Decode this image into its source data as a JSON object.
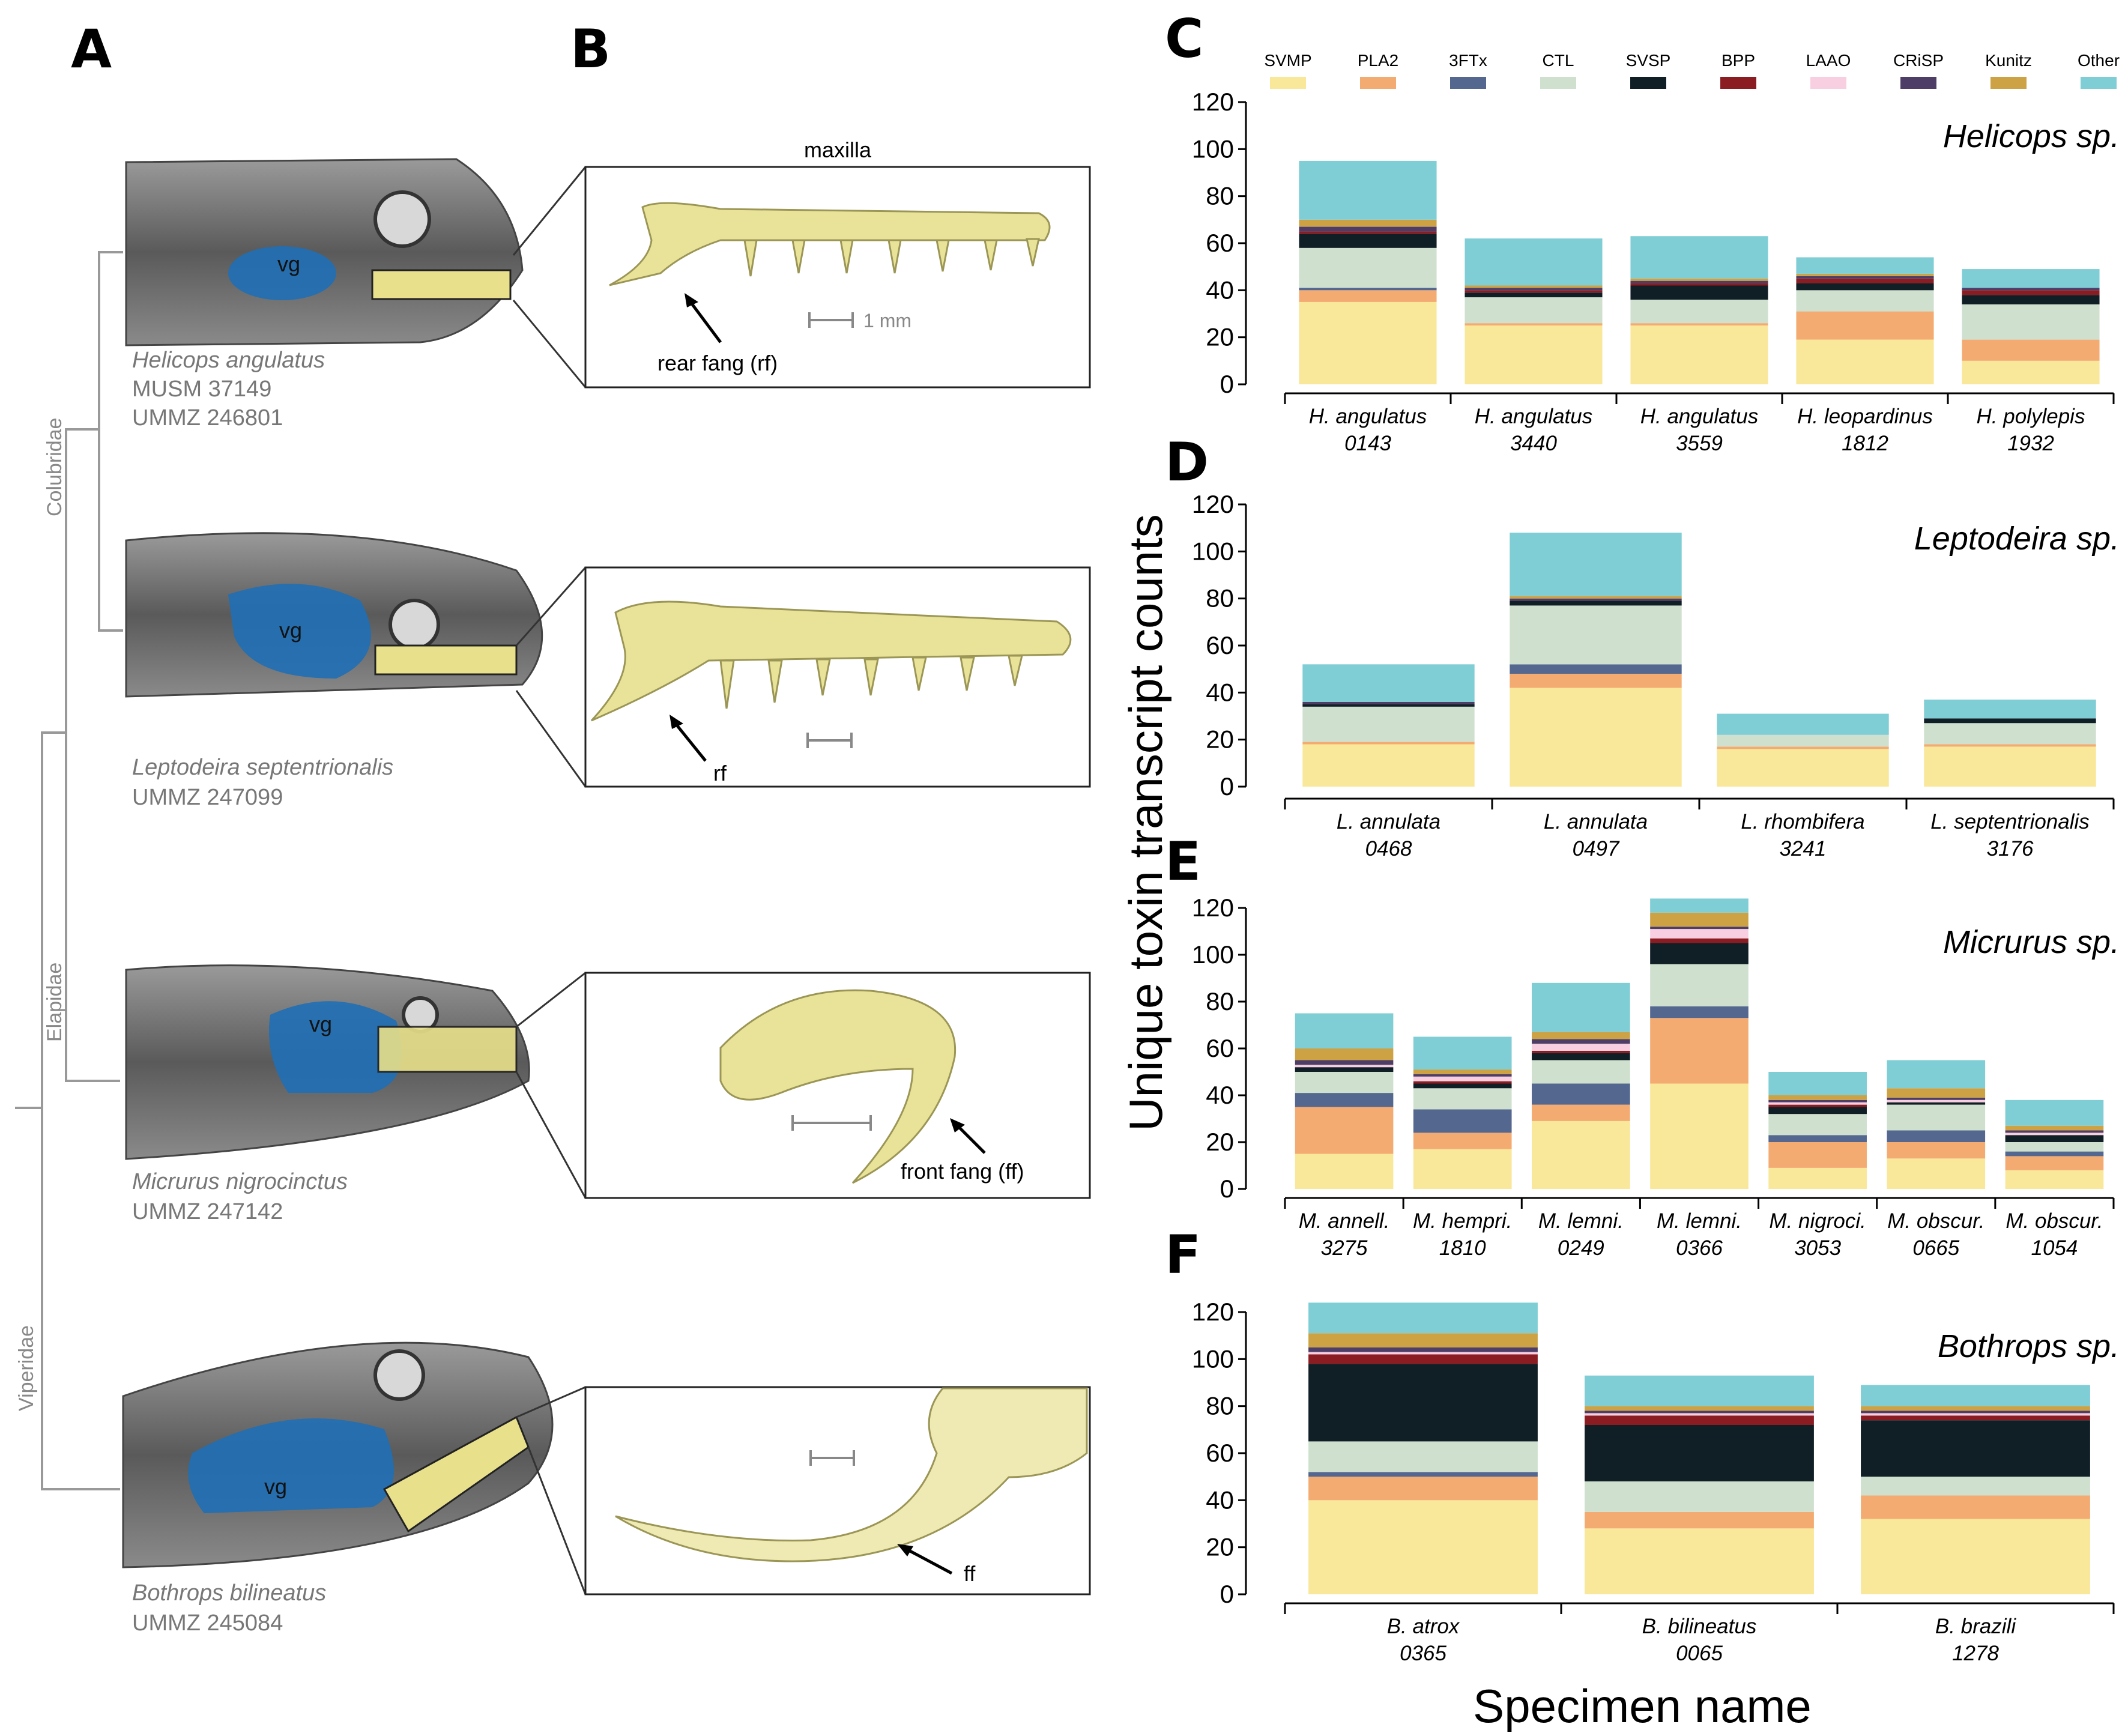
{
  "panel_labels": {
    "a": "A",
    "b": "B",
    "c": "C",
    "d": "D",
    "e": "E",
    "f": "F"
  },
  "specimens": [
    {
      "species": "Helicops angulatus",
      "ids": [
        "MUSM 37149",
        "UMMZ 246801"
      ]
    },
    {
      "species": "Leptodeira septentrionalis",
      "ids": [
        "UMMZ 247099"
      ]
    },
    {
      "species": "Micrurus nigrocinctus",
      "ids": [
        "UMMZ 247142"
      ]
    },
    {
      "species": "Bothrops bilineatus",
      "ids": [
        "UMMZ 245084"
      ]
    }
  ],
  "families": [
    "Colubridae",
    "Elapidae",
    "Viperidae"
  ],
  "insets": {
    "maxilla_title": "maxilla",
    "scale": "1 mm",
    "vg": "vg",
    "rear_fang": "rear fang (rf)",
    "rf": "rf",
    "front_fang": "front fang (ff)",
    "ff": "ff"
  },
  "legend": {
    "categories": [
      "SVMP",
      "PLA2",
      "3FTx",
      "CTL",
      "SVSP",
      "BPP",
      "LAAO",
      "CRiSP",
      "Kunitz",
      "Other"
    ],
    "colors": {
      "SVMP": "#f9e79a",
      "PLA2": "#f4ab72",
      "3FTx": "#53678f",
      "CTL": "#cfe0cf",
      "SVSP": "#101e26",
      "BPP": "#8b1c22",
      "LAAO": "#f7cfe0",
      "CRiSP": "#4e3e67",
      "Kunitz": "#cda244",
      "Other": "#7fcdd5"
    }
  },
  "chart_data": [
    {
      "panel": "C",
      "type": "bar",
      "stacked": true,
      "title": "Helicops sp.",
      "ylim": [
        0,
        120
      ],
      "yticks": [
        "0",
        "20",
        "40",
        "60",
        "80",
        "100",
        "120"
      ],
      "categories": [
        [
          "H. angulatus",
          "0143"
        ],
        [
          "H. angulatus",
          "3440"
        ],
        [
          "H. angulatus",
          "3559"
        ],
        [
          "H. leopardinus",
          "1812"
        ],
        [
          "H. polylepis",
          "1932"
        ]
      ],
      "series": [
        {
          "name": "SVMP",
          "values": [
            35,
            25,
            25,
            19,
            10
          ]
        },
        {
          "name": "PLA2",
          "values": [
            5,
            1,
            1,
            12,
            9
          ]
        },
        {
          "name": "3FTx",
          "values": [
            1,
            0,
            0,
            0,
            0
          ]
        },
        {
          "name": "CTL",
          "values": [
            17,
            11,
            10,
            9,
            15
          ]
        },
        {
          "name": "SVSP",
          "values": [
            6,
            2,
            6,
            3,
            4
          ]
        },
        {
          "name": "BPP",
          "values": [
            1,
            1,
            1,
            2,
            2
          ]
        },
        {
          "name": "LAAO",
          "values": [
            0,
            0,
            0,
            0,
            0
          ]
        },
        {
          "name": "CRiSP",
          "values": [
            2,
            1,
            1,
            1,
            1
          ]
        },
        {
          "name": "Kunitz",
          "values": [
            3,
            1,
            1,
            1,
            0
          ]
        },
        {
          "name": "Other",
          "values": [
            25,
            20,
            18,
            7,
            8
          ]
        }
      ]
    },
    {
      "panel": "D",
      "type": "bar",
      "stacked": true,
      "title": "Leptodeira sp.",
      "ylim": [
        0,
        120
      ],
      "yticks": [
        "0",
        "20",
        "40",
        "60",
        "80",
        "100",
        "120"
      ],
      "categories": [
        [
          "L. annulata",
          "0468"
        ],
        [
          "L. annulata",
          "0497"
        ],
        [
          "L. rhombifera",
          "3241"
        ],
        [
          "L. septentrionalis",
          "3176"
        ]
      ],
      "series": [
        {
          "name": "SVMP",
          "values": [
            18,
            42,
            16,
            17
          ]
        },
        {
          "name": "PLA2",
          "values": [
            1,
            6,
            1,
            1
          ]
        },
        {
          "name": "3FTx",
          "values": [
            0,
            4,
            0,
            0
          ]
        },
        {
          "name": "CTL",
          "values": [
            15,
            25,
            5,
            9
          ]
        },
        {
          "name": "SVSP",
          "values": [
            1,
            2,
            0,
            2
          ]
        },
        {
          "name": "BPP",
          "values": [
            0,
            0,
            0,
            0
          ]
        },
        {
          "name": "LAAO",
          "values": [
            0,
            0,
            0,
            0
          ]
        },
        {
          "name": "CRiSP",
          "values": [
            1,
            1,
            0,
            0
          ]
        },
        {
          "name": "Kunitz",
          "values": [
            0,
            1,
            0,
            0
          ]
        },
        {
          "name": "Other",
          "values": [
            16,
            27,
            9,
            8
          ]
        }
      ]
    },
    {
      "panel": "E",
      "type": "bar",
      "stacked": true,
      "title": "Micrurus sp.",
      "ylim": [
        0,
        120
      ],
      "yticks": [
        "0",
        "20",
        "40",
        "60",
        "80",
        "100",
        "120"
      ],
      "categories": [
        [
          "M. annell.",
          "3275"
        ],
        [
          "M. hempri.",
          "1810"
        ],
        [
          "M. lemni.",
          "0249"
        ],
        [
          "M. lemni.",
          "0366"
        ],
        [
          "M. nigroci.",
          "3053"
        ],
        [
          "M. obscur.",
          "0665"
        ],
        [
          "M. obscur.",
          "1054"
        ]
      ],
      "series": [
        {
          "name": "SVMP",
          "values": [
            15,
            17,
            29,
            45,
            9,
            13,
            8
          ]
        },
        {
          "name": "PLA2",
          "values": [
            20,
            7,
            7,
            28,
            11,
            7,
            6
          ]
        },
        {
          "name": "3FTx",
          "values": [
            6,
            10,
            9,
            5,
            3,
            5,
            2
          ]
        },
        {
          "name": "CTL",
          "values": [
            9,
            9,
            10,
            18,
            9,
            11,
            4
          ]
        },
        {
          "name": "SVSP",
          "values": [
            2,
            2,
            3,
            9,
            3,
            1,
            3
          ]
        },
        {
          "name": "BPP",
          "values": [
            0,
            1,
            1,
            2,
            1,
            0,
            0
          ]
        },
        {
          "name": "LAAO",
          "values": [
            1,
            2,
            3,
            4,
            1,
            1,
            1
          ]
        },
        {
          "name": "CRiSP",
          "values": [
            2,
            1,
            2,
            1,
            1,
            1,
            1
          ]
        },
        {
          "name": "Kunitz",
          "values": [
            5,
            2,
            3,
            6,
            2,
            4,
            2
          ]
        },
        {
          "name": "Other",
          "values": [
            15,
            14,
            21,
            6,
            10,
            12,
            11
          ]
        }
      ]
    },
    {
      "panel": "F",
      "type": "bar",
      "stacked": true,
      "title": "Bothrops sp.",
      "ylim": [
        0,
        120
      ],
      "yticks": [
        "0",
        "20",
        "40",
        "60",
        "80",
        "100",
        "120"
      ],
      "categories": [
        [
          "B. atrox",
          "0365"
        ],
        [
          "B. bilineatus",
          "0065"
        ],
        [
          "B. brazili",
          "1278"
        ]
      ],
      "series": [
        {
          "name": "SVMP",
          "values": [
            40,
            28,
            32
          ]
        },
        {
          "name": "PLA2",
          "values": [
            10,
            7,
            10
          ]
        },
        {
          "name": "3FTx",
          "values": [
            2,
            0,
            0
          ]
        },
        {
          "name": "CTL",
          "values": [
            13,
            13,
            8
          ]
        },
        {
          "name": "SVSP",
          "values": [
            33,
            24,
            24
          ]
        },
        {
          "name": "BPP",
          "values": [
            4,
            4,
            2
          ]
        },
        {
          "name": "LAAO",
          "values": [
            1,
            1,
            1
          ]
        },
        {
          "name": "CRiSP",
          "values": [
            2,
            1,
            1
          ]
        },
        {
          "name": "Kunitz",
          "values": [
            6,
            2,
            2
          ]
        },
        {
          "name": "Other",
          "values": [
            13,
            13,
            9
          ]
        }
      ]
    }
  ],
  "axes": {
    "ylabel": "Unique toxin transcript counts",
    "xlabel": "Specimen name"
  }
}
